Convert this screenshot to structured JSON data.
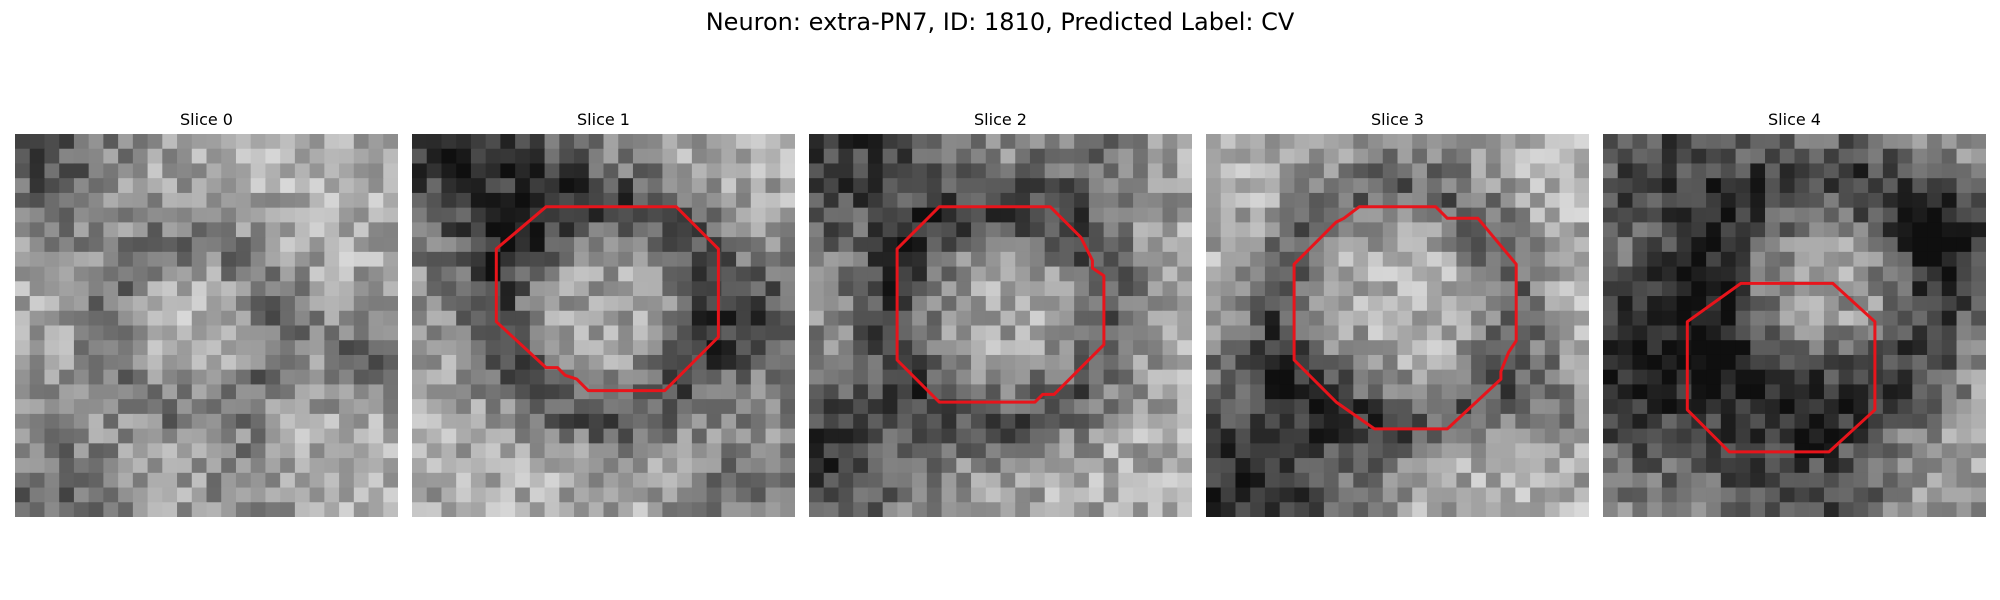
{
  "figure": {
    "title": "Neuron: extra-PN7, ID: 1810, Predicted Label: CV"
  },
  "colors": {
    "contour": "#e8141b",
    "background": "#ffffff",
    "text": "#000000",
    "colormap": "gray"
  },
  "panels": [
    {
      "title": "Slice 0",
      "has_contour": false
    },
    {
      "title": "Slice 1",
      "has_contour": true
    },
    {
      "title": "Slice 2",
      "has_contour": true
    },
    {
      "title": "Slice 3",
      "has_contour": true
    },
    {
      "title": "Slice 4",
      "has_contour": true
    }
  ]
}
